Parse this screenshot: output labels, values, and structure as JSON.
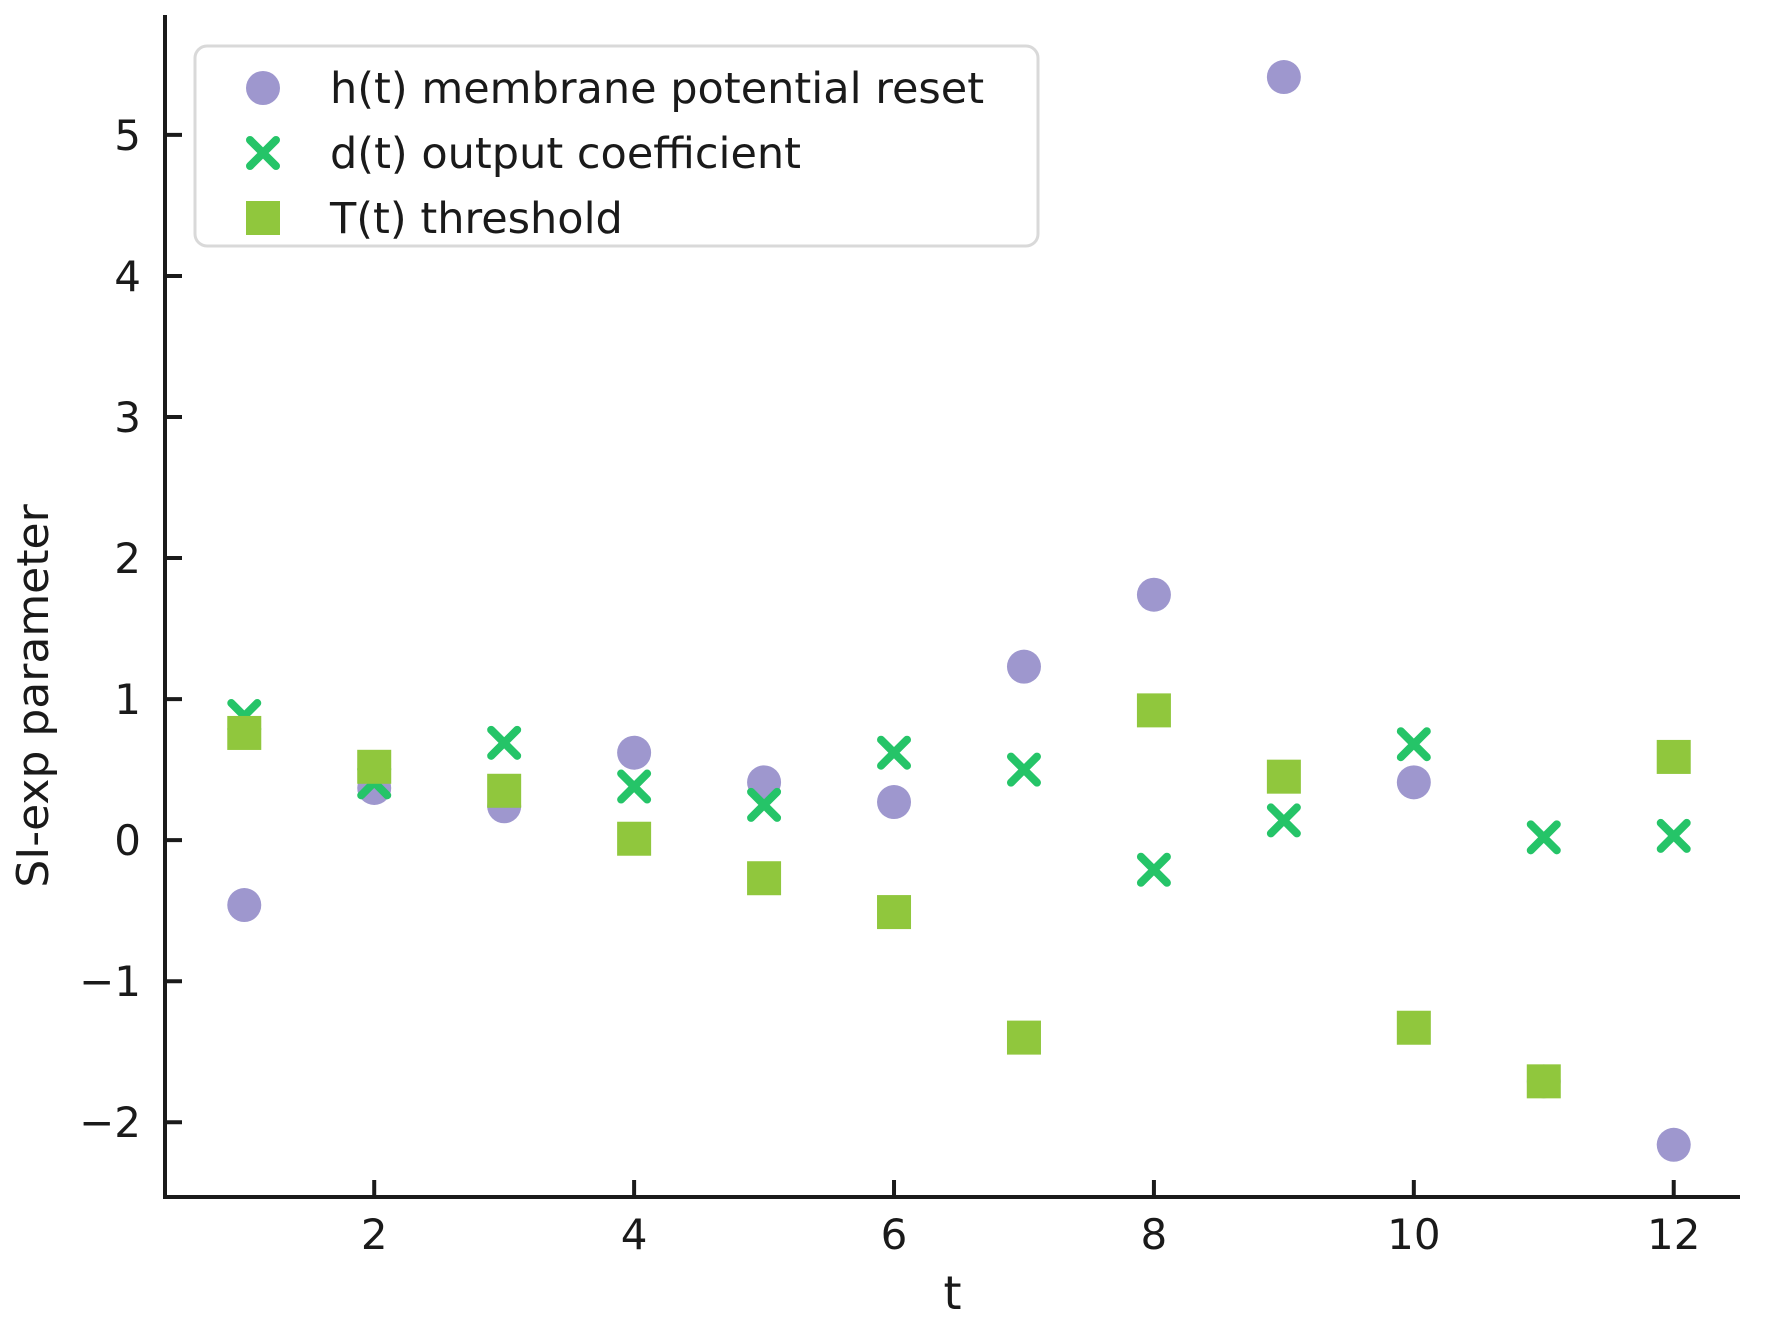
{
  "figure": {
    "background": "#ffffff"
  },
  "chart_data": {
    "type": "scatter",
    "title": "",
    "xlabel": "t",
    "ylabel": "SI-exp parameter",
    "xlim": [
      0.39,
      12.51
    ],
    "ylim": [
      -2.53,
      5.85
    ],
    "xticks": [
      2,
      4,
      6,
      8,
      10,
      12
    ],
    "yticks": [
      -2,
      -1,
      0,
      1,
      2,
      3,
      4,
      5
    ],
    "grid": false,
    "axis_color": "#1a1a1a",
    "legend": {
      "position": "upper-left",
      "border_color": "#d9d9d9",
      "background": "#ffffff"
    },
    "x": [
      1,
      2,
      3,
      4,
      5,
      6,
      7,
      8,
      9,
      10,
      11,
      12
    ],
    "series": [
      {
        "name": "h(t) membrane potential reset",
        "marker": "circle",
        "color": "#9e97ce",
        "values": [
          -0.46,
          0.37,
          0.24,
          0.62,
          0.41,
          0.27,
          1.23,
          1.74,
          5.41,
          0.41,
          -1.71,
          -2.16
        ]
      },
      {
        "name": "d(t) output coefficient",
        "marker": "x",
        "color": "#25c468",
        "values": [
          0.88,
          0.41,
          0.69,
          0.38,
          0.25,
          0.62,
          0.5,
          -0.21,
          0.14,
          0.68,
          0.02,
          0.03
        ]
      },
      {
        "name": "T(t) threshold",
        "marker": "square",
        "color": "#90c73d",
        "values": [
          0.76,
          0.52,
          0.35,
          0.01,
          -0.27,
          -0.51,
          -1.4,
          0.92,
          0.45,
          -1.33,
          -1.71,
          0.59
        ]
      }
    ]
  }
}
